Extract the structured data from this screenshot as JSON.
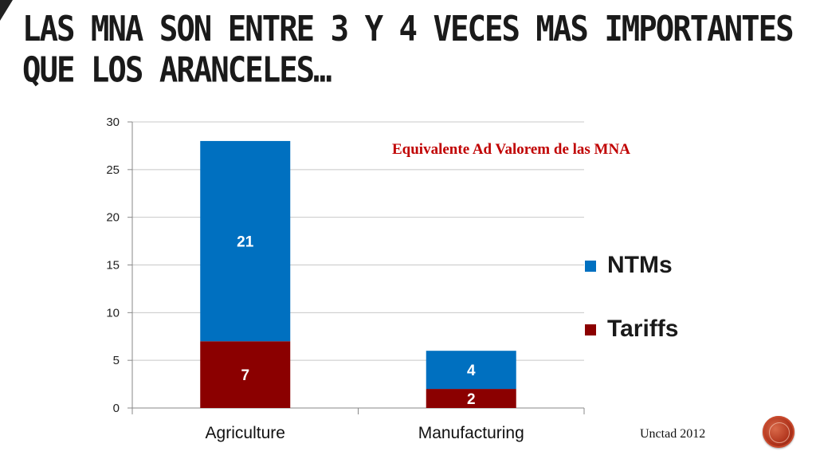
{
  "slide": {
    "title_line1": "LAS MNA SON ENTRE 3 Y 4 VECES MAS IMPORTANTES",
    "title_line2": "QUE LOS ARANCELES…",
    "source": "Unctad 2012"
  },
  "chart_data": {
    "type": "bar",
    "stacked": true,
    "title": "Equivalente Ad Valorem de las MNA",
    "categories": [
      "Agriculture",
      "Manufacturing"
    ],
    "series": [
      {
        "name": "Tariffs",
        "values": [
          7,
          2
        ],
        "color": "#8b0000"
      },
      {
        "name": "NTMs",
        "values": [
          21,
          4
        ],
        "color": "#0070c0"
      }
    ],
    "ylim": [
      0,
      30
    ],
    "yticks": [
      "0",
      "5",
      "10",
      "15",
      "20",
      "25",
      "30"
    ],
    "grid": true,
    "legend_position": "right"
  },
  "icons": {
    "seal": "red-seal-icon"
  }
}
